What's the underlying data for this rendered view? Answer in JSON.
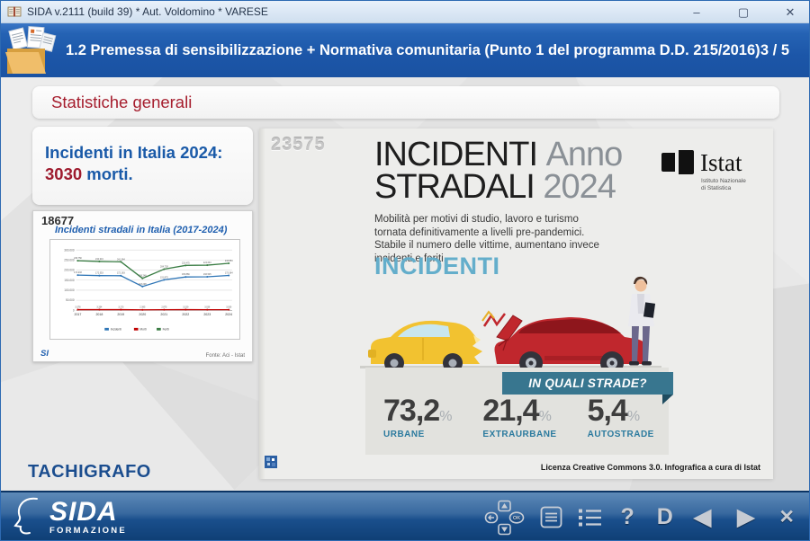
{
  "window": {
    "title": "SIDA v.2111 (build 39) * Aut. Voldomino * VARESE",
    "controls": {
      "minimize": "–",
      "maximize": "▢",
      "close": "✕"
    }
  },
  "header": {
    "title": "1.2 Premessa di sensibilizzazione + Normativa comunitaria (Punto 1 del programma D.D. 215/2016)",
    "page_indicator": "3 / 5"
  },
  "slide": {
    "section_title": "Statistiche generali",
    "highlight": {
      "prefix": "Incidenti in Italia 2024:",
      "deaths": "3030",
      "suffix": " morti."
    },
    "watermark_chart": "18677",
    "si_logo": "SI",
    "tachigrafo_label": "TACHIGRAFO"
  },
  "chart_data": {
    "type": "line",
    "title": "Incidenti stradali in Italia (2017-2024)",
    "categories": [
      "2017",
      "2018",
      "2019",
      "2020",
      "2021",
      "2022",
      "2023",
      "2024"
    ],
    "series": [
      {
        "name": "Incidenti",
        "color": "#2E75B6",
        "values": [
          174933,
          172553,
          172183,
          118298,
          151875,
          165889,
          166525,
          173364
        ]
      },
      {
        "name": "Morti",
        "color": "#C00000",
        "values": [
          3378,
          3334,
          3173,
          2395,
          2875,
          3159,
          3039,
          3030
        ]
      },
      {
        "name": "Feriti",
        "color": "#3A7D44",
        "values": [
          246750,
          242919,
          241384,
          159249,
          204728,
          223475,
          224634,
          233853
        ]
      }
    ],
    "ylim": [
      0,
      300000
    ],
    "ytick_step": 50000,
    "grid": true,
    "legend_position": "bottom",
    "source": "Fonte: Aci - Istat"
  },
  "infographic": {
    "watermark": "23575",
    "title_line1_black": "INCIDENTI",
    "title_line1_gray": "Anno",
    "title_line2_black": "STRADALI",
    "title_line2_gray": "2024",
    "istat": {
      "wordmark": "Istat",
      "subtitle_line1": "Istituto Nazionale",
      "subtitle_line2": "di Statistica"
    },
    "description": "Mobilità per motivi di studio, lavoro e turismo tornata definitivamente a livelli pre-pandemici. Stabile il numero delle vittime, aumentano invece incidenti e feriti.",
    "section_heading": "INCIDENTI",
    "roads_banner": "IN QUALI STRADE?",
    "road_stats": [
      {
        "value": "73,2",
        "unit": "%",
        "label": "URBANE"
      },
      {
        "value": "21,4",
        "unit": "%",
        "label": "EXTRAURBANE"
      },
      {
        "value": "5,4",
        "unit": "%",
        "label": "AUTOSTRADE"
      }
    ],
    "license": "Licenza Creative Commons 3.0. Infografica a cura di Istat"
  },
  "bottom_bar": {
    "logo": {
      "name": "SIDA",
      "subtitle": "FORMAZIONE"
    },
    "remote_ok": "OK",
    "help_label": "?",
    "dictionary_label": "D",
    "prev_glyph": "◀",
    "next_glyph": "▶",
    "close_glyph": "✕"
  },
  "colors": {
    "header_blue": "#1C56A8",
    "section_red": "#A61E2E",
    "highlight_blue": "#1A5AA8",
    "deaths_red": "#9E1B2E",
    "incidenti_heading": "#64AECB",
    "roads_teal": "#38768F",
    "bottom_bar_blue": "#1A4F8C",
    "nav_silver": "#C6CBD3"
  }
}
